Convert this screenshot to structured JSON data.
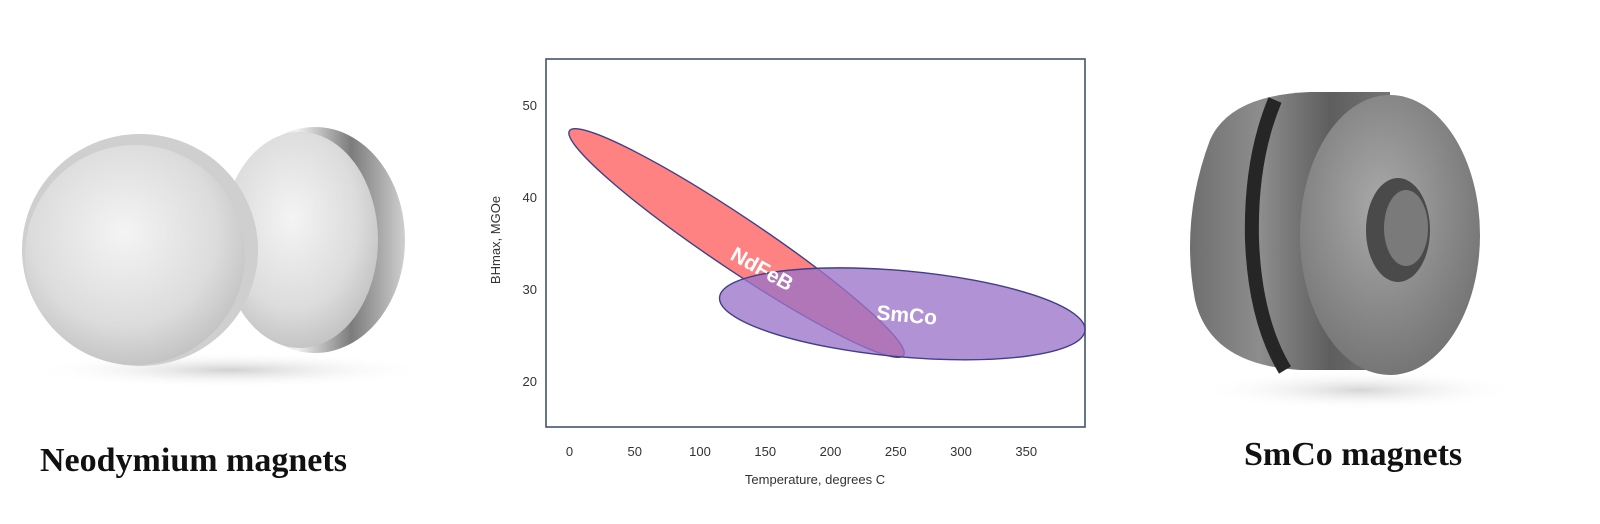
{
  "left_photo": {
    "caption": "Neodymium magnets",
    "subject": "stacked disc magnets"
  },
  "right_photo": {
    "caption": "SmCo magnets",
    "subject": "ring magnet"
  },
  "chart_data": {
    "type": "scatter",
    "title": "",
    "xlabel": "Temperature, degrees C",
    "ylabel": "BHmax, MGOe",
    "xlim": [
      -18,
      395
    ],
    "ylim": [
      15,
      55
    ],
    "x_ticks": [
      0,
      50,
      100,
      150,
      200,
      250,
      300,
      350
    ],
    "y_ticks": [
      20,
      30,
      40,
      50
    ],
    "grid": false,
    "series": [
      {
        "name": "NdFeB",
        "shape": "ellipse-region",
        "center": [
          128,
          35
        ],
        "half_length": [
          {
            "x": -128,
            "y": 12.2
          },
          {
            "x": 128,
            "y": -12.2
          }
        ],
        "half_width_y": 3.4,
        "color": "#ff7b7b",
        "label_at": [
          145,
          31.5
        ],
        "label_rotation_deg": 29
      },
      {
        "name": "SmCo",
        "shape": "ellipse-region",
        "center": [
          255,
          27.3
        ],
        "half_length": [
          {
            "x": -140,
            "y": 1.8
          },
          {
            "x": 140,
            "y": -1.8
          }
        ],
        "half_width_y": 4.7,
        "color": "#9b73c8",
        "label_at": [
          258,
          26.4
        ],
        "label_rotation_deg": 5
      }
    ]
  }
}
